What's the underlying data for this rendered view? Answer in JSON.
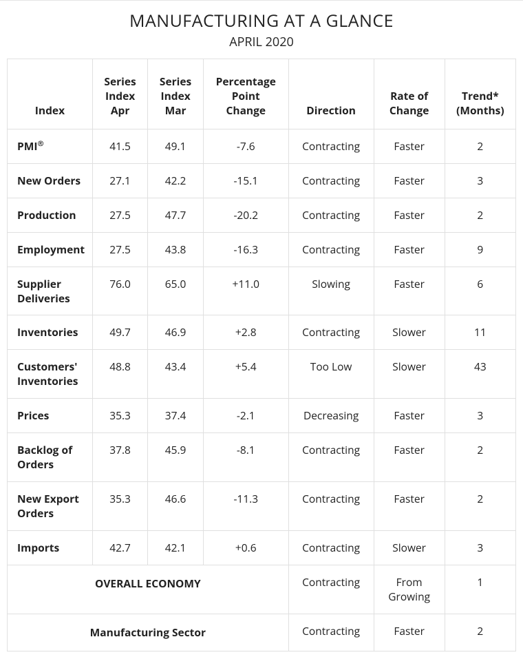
{
  "title": "MANUFACTURING AT A GLANCE",
  "subtitle": "APRIL 2020",
  "columns": [
    {
      "lines": [
        "Index"
      ],
      "align": "bottom"
    },
    {
      "lines": [
        "Series",
        "Index",
        "Apr"
      ]
    },
    {
      "lines": [
        "Series",
        "Index",
        "Mar"
      ]
    },
    {
      "lines": [
        "Percentage",
        "Point",
        "Change"
      ]
    },
    {
      "lines": [
        "Direction"
      ]
    },
    {
      "lines": [
        "Rate of",
        "Change"
      ]
    },
    {
      "lines": [
        "Trend*",
        "(Months)"
      ]
    }
  ],
  "rows": [
    {
      "index_html": "PMI<sup>®</sup>",
      "apr": "41.5",
      "mar": "49.1",
      "pct": "-7.6",
      "direction": "Contracting",
      "rate": "Faster",
      "trend": "2"
    },
    {
      "index": "New Orders",
      "apr": "27.1",
      "mar": "42.2",
      "pct": "-15.1",
      "direction": "Contracting",
      "rate": "Faster",
      "trend": "3"
    },
    {
      "index": "Production",
      "apr": "27.5",
      "mar": "47.7",
      "pct": "-20.2",
      "direction": "Contracting",
      "rate": "Faster",
      "trend": "2"
    },
    {
      "index": "Employment",
      "apr": "27.5",
      "mar": "43.8",
      "pct": "-16.3",
      "direction": "Contracting",
      "rate": "Faster",
      "trend": "9"
    },
    {
      "index": "Supplier Deliveries",
      "apr": "76.0",
      "mar": "65.0",
      "pct": "+11.0",
      "direction": "Slowing",
      "rate": "Faster",
      "trend": "6"
    },
    {
      "index": "Inventories",
      "apr": "49.7",
      "mar": "46.9",
      "pct": "+2.8",
      "direction": "Contracting",
      "rate": "Slower",
      "trend": "11"
    },
    {
      "index": "Customers' Inventories",
      "apr": "48.8",
      "mar": "43.4",
      "pct": "+5.4",
      "direction": "Too Low",
      "rate": "Slower",
      "trend": "43"
    },
    {
      "index": "Prices",
      "apr": "35.3",
      "mar": "37.4",
      "pct": "-2.1",
      "direction": "Decreasing",
      "rate": "Faster",
      "trend": "3"
    },
    {
      "index": "Backlog of Orders",
      "apr": "37.8",
      "mar": "45.9",
      "pct": "-8.1",
      "direction": "Contracting",
      "rate": "Faster",
      "trend": "2"
    },
    {
      "index": "New Export Orders",
      "apr": "35.3",
      "mar": "46.6",
      "pct": "-11.3",
      "direction": "Contracting",
      "rate": "Faster",
      "trend": "2"
    },
    {
      "index": "Imports",
      "apr": "42.7",
      "mar": "42.1",
      "pct": "+0.6",
      "direction": "Contracting",
      "rate": "Slower",
      "trend": "3"
    }
  ],
  "summary_rows": [
    {
      "label": "OVERALL ECONOMY",
      "direction": "Contracting",
      "rate_lines": [
        "From",
        "Growing"
      ],
      "trend": "1"
    },
    {
      "label": "Manufacturing Sector",
      "direction": "Contracting",
      "rate_lines": [
        "Faster"
      ],
      "trend": "2"
    }
  ],
  "style": {
    "border_color": "#e0e0e0",
    "text_color": "#222222",
    "background": "#ffffff",
    "font_size_body": 15.5,
    "font_size_title": 25,
    "font_size_subtitle": 18
  }
}
